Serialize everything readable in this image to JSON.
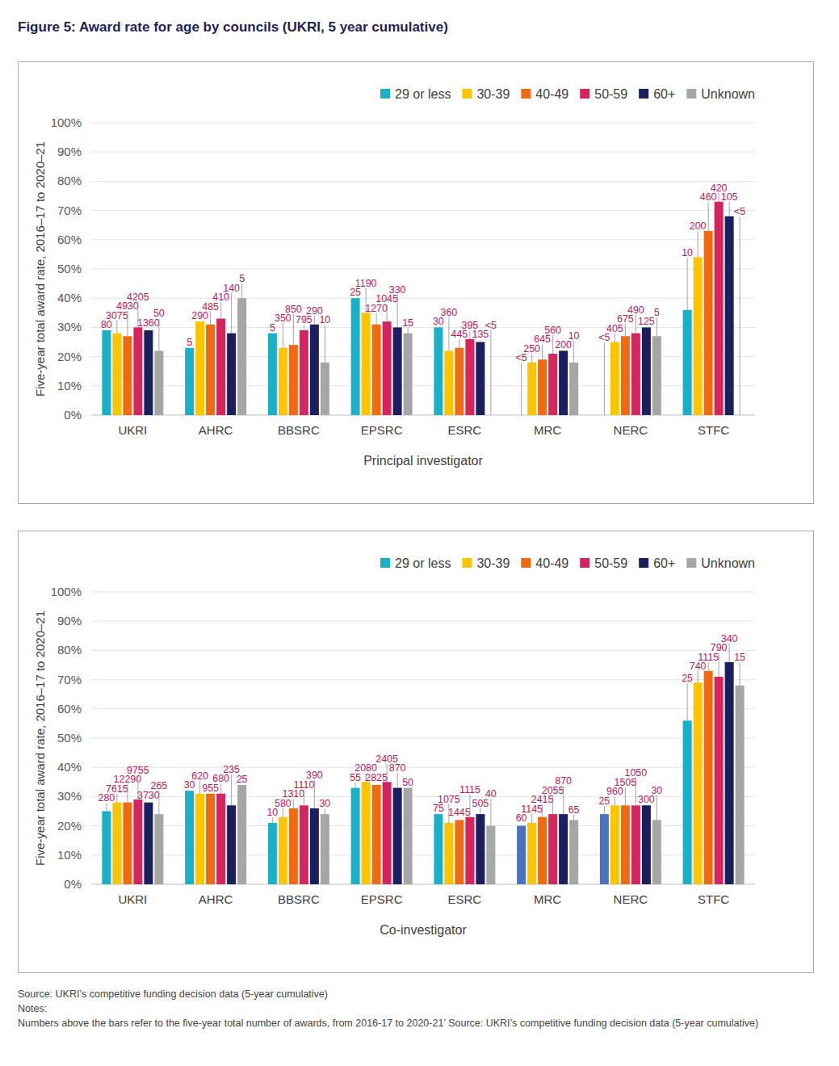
{
  "title": "Figure 5: Award rate for age by councils (UKRI, 5 year cumulative)",
  "source": "Source: UKRI’s competitive funding decision data (5-year cumulative)",
  "notes_heading": "Notes:",
  "notes": "Numbers above the bars refer to the five-year total number of awards, from 2016-17 to 2020-21’ Source: UKRI’s competitive funding decision data (5-year cumulative)",
  "chart_data": [
    {
      "type": "bar",
      "x_label": "Principal investigator",
      "y_label": "Five-year total award rate, 2016–17 to 2020–21",
      "categories": [
        "UKRI",
        "AHRC",
        "BBSRC",
        "EPSRC",
        "ESRC",
        "MRC",
        "NERC",
        "STFC"
      ],
      "ylim": [
        0,
        100
      ],
      "yticks": [
        {
          "value": 0,
          "label": "0%"
        },
        {
          "value": 10,
          "label": "10%"
        },
        {
          "value": 20,
          "label": "20%"
        },
        {
          "value": 30,
          "label": "30%"
        },
        {
          "value": 40,
          "label": "40%"
        },
        {
          "value": 50,
          "label": "50%"
        },
        {
          "value": 60,
          "label": "60%"
        },
        {
          "value": 70,
          "label": "70%"
        },
        {
          "value": 80,
          "label": "80%"
        },
        {
          "value": 90,
          "label": "90%"
        },
        {
          "value": 100,
          "label": "100%"
        }
      ],
      "grid": true,
      "legend": "top-right",
      "series": [
        {
          "name": "29 or less",
          "color": "#1ab0c8",
          "values": [
            29,
            23,
            28,
            40,
            30,
            null,
            null,
            36
          ],
          "awards": [
            80,
            5,
            5,
            25,
            30,
            "<5",
            "<5",
            10
          ]
        },
        {
          "name": "30-39",
          "color": "#fdc500",
          "values": [
            28,
            32,
            23,
            35,
            22,
            18,
            25,
            54
          ],
          "awards": [
            3075,
            290,
            350,
            1190,
            360,
            250,
            405,
            200
          ]
        },
        {
          "name": "40-49",
          "color": "#ef6a10",
          "values": [
            27,
            31,
            24,
            31,
            23,
            19,
            27,
            63
          ],
          "awards": [
            4930,
            485,
            850,
            1270,
            445,
            645,
            675,
            460
          ]
        },
        {
          "name": "50-59",
          "color": "#d6245e",
          "values": [
            30,
            33,
            29,
            32,
            26,
            21,
            28,
            73
          ],
          "awards": [
            4205,
            410,
            795,
            1045,
            395,
            560,
            490,
            420
          ]
        },
        {
          "name": "60+",
          "color": "#1c1f5e",
          "values": [
            29,
            28,
            31,
            30,
            25,
            22,
            30,
            68
          ],
          "awards": [
            1360,
            140,
            290,
            330,
            135,
            200,
            125,
            105
          ]
        },
        {
          "name": "Unknown",
          "color": "#a6a6a6",
          "values": [
            22,
            40,
            18,
            28,
            null,
            18,
            27,
            null
          ],
          "awards": [
            50,
            5,
            10,
            15,
            "<5",
            10,
            5,
            "<5"
          ]
        }
      ]
    },
    {
      "type": "bar",
      "x_label": "Co-investigator",
      "y_label": "Five-year total award rate, 2016–17 to 2020–21",
      "categories": [
        "UKRI",
        "AHRC",
        "BBSRC",
        "EPSRC",
        "ESRC",
        "MRC",
        "NERC",
        "STFC"
      ],
      "ylim": [
        0,
        100
      ],
      "yticks": [
        {
          "value": 0,
          "label": "0%"
        },
        {
          "value": 10,
          "label": "10%"
        },
        {
          "value": 20,
          "label": "20%"
        },
        {
          "value": 30,
          "label": "30%"
        },
        {
          "value": 40,
          "label": "40%"
        },
        {
          "value": 50,
          "label": "50%"
        },
        {
          "value": 60,
          "label": "60%"
        },
        {
          "value": 70,
          "label": "70%"
        },
        {
          "value": 80,
          "label": "80%"
        },
        {
          "value": 90,
          "label": "90%"
        },
        {
          "value": 100,
          "label": "100%"
        }
      ],
      "grid": true,
      "legend": "top-right",
      "series": [
        {
          "name": "29 or less",
          "color": "#1ab0c8",
          "colors": [
            "#1ab0c8",
            "#1ab0c8",
            "#1ab0c8",
            "#1ab0c8",
            "#1ab0c8",
            "#4a72c0",
            "#4a72c0",
            "#1ab0c8"
          ],
          "values": [
            25,
            32,
            21,
            33,
            24,
            20,
            24,
            56
          ],
          "awards": [
            280,
            30,
            10,
            55,
            75,
            60,
            25,
            25
          ]
        },
        {
          "name": "30-39",
          "color": "#fdc500",
          "values": [
            28,
            31,
            23,
            35,
            21,
            21,
            27,
            69
          ],
          "awards": [
            7615,
            620,
            580,
            2080,
            1075,
            1145,
            960,
            740
          ]
        },
        {
          "name": "40-49",
          "color": "#ef6a10",
          "values": [
            28,
            31,
            26,
            34,
            22,
            23,
            27,
            73
          ],
          "awards": [
            12290,
            955,
            1310,
            2825,
            1445,
            2415,
            1505,
            1115
          ]
        },
        {
          "name": "50-59",
          "color": "#d6245e",
          "values": [
            29,
            31,
            27,
            35,
            23,
            24,
            27,
            71
          ],
          "awards": [
            9755,
            680,
            1110,
            2405,
            1115,
            2055,
            1050,
            790
          ]
        },
        {
          "name": "60+",
          "color": "#1c1f5e",
          "values": [
            28,
            27,
            26,
            33,
            24,
            24,
            27,
            76
          ],
          "awards": [
            3730,
            235,
            390,
            870,
            505,
            870,
            300,
            340
          ]
        },
        {
          "name": "Unknown",
          "color": "#a6a6a6",
          "values": [
            24,
            34,
            24,
            33,
            20,
            22,
            22,
            68
          ],
          "awards": [
            265,
            25,
            30,
            50,
            40,
            65,
            30,
            15
          ]
        }
      ]
    }
  ]
}
